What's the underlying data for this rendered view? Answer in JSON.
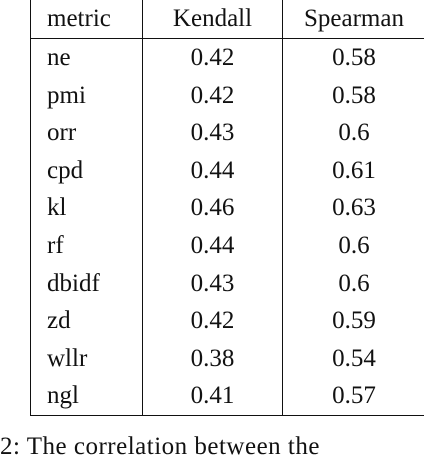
{
  "table": {
    "headers": [
      "metric",
      "Kendall",
      "Spearman"
    ],
    "rows": [
      [
        "ne",
        "0.42",
        "0.58"
      ],
      [
        "pmi",
        "0.42",
        "0.58"
      ],
      [
        "orr",
        "0.43",
        "0.6"
      ],
      [
        "cpd",
        "0.44",
        "0.61"
      ],
      [
        "kl",
        "0.46",
        "0.63"
      ],
      [
        "rf",
        "0.44",
        "0.6"
      ],
      [
        "dbidf",
        "0.43",
        "0.6"
      ],
      [
        "zd",
        "0.42",
        "0.59"
      ],
      [
        "wllr",
        "0.38",
        "0.54"
      ],
      [
        "ngl",
        "0.41",
        "0.57"
      ]
    ]
  },
  "caption": "2: The correlation between the"
}
